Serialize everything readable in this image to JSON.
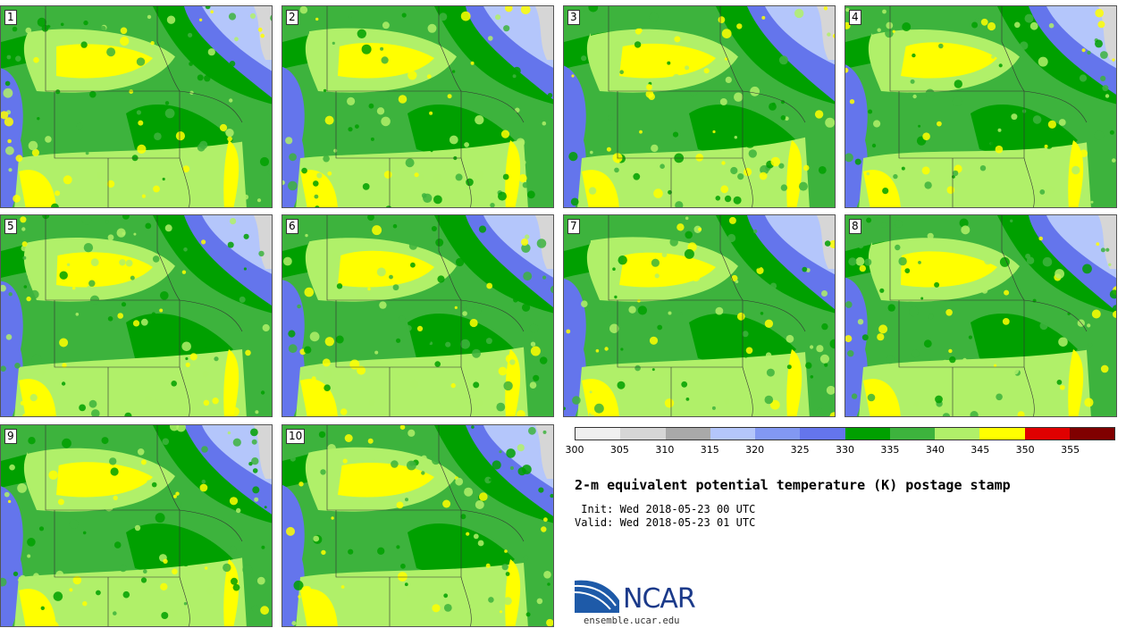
{
  "panels": [
    {
      "label": "1"
    },
    {
      "label": "2"
    },
    {
      "label": "3"
    },
    {
      "label": "4"
    },
    {
      "label": "5"
    },
    {
      "label": "6"
    },
    {
      "label": "7"
    },
    {
      "label": "8"
    },
    {
      "label": "9"
    },
    {
      "label": "10"
    }
  ],
  "colorbar": {
    "colors": [
      "#f0f0f0",
      "#d6d6d6",
      "#a9a9a9",
      "#b4c6fb",
      "#8298f3",
      "#6475ec",
      "#00a000",
      "#3db33d",
      "#b0f069",
      "#ffff00",
      "#e00000",
      "#800000"
    ],
    "ticks": [
      "300",
      "305",
      "310",
      "315",
      "320",
      "325",
      "330",
      "335",
      "340",
      "345",
      "350",
      "355"
    ]
  },
  "title": "2-m equivalent potential temperature (K) postage stamp",
  "init": " Init: Wed 2018-05-23 00 UTC",
  "valid": "Valid: Wed 2018-05-23 01 UTC",
  "logo": {
    "text": "NCAR",
    "website": "ensemble.ucar.edu"
  }
}
